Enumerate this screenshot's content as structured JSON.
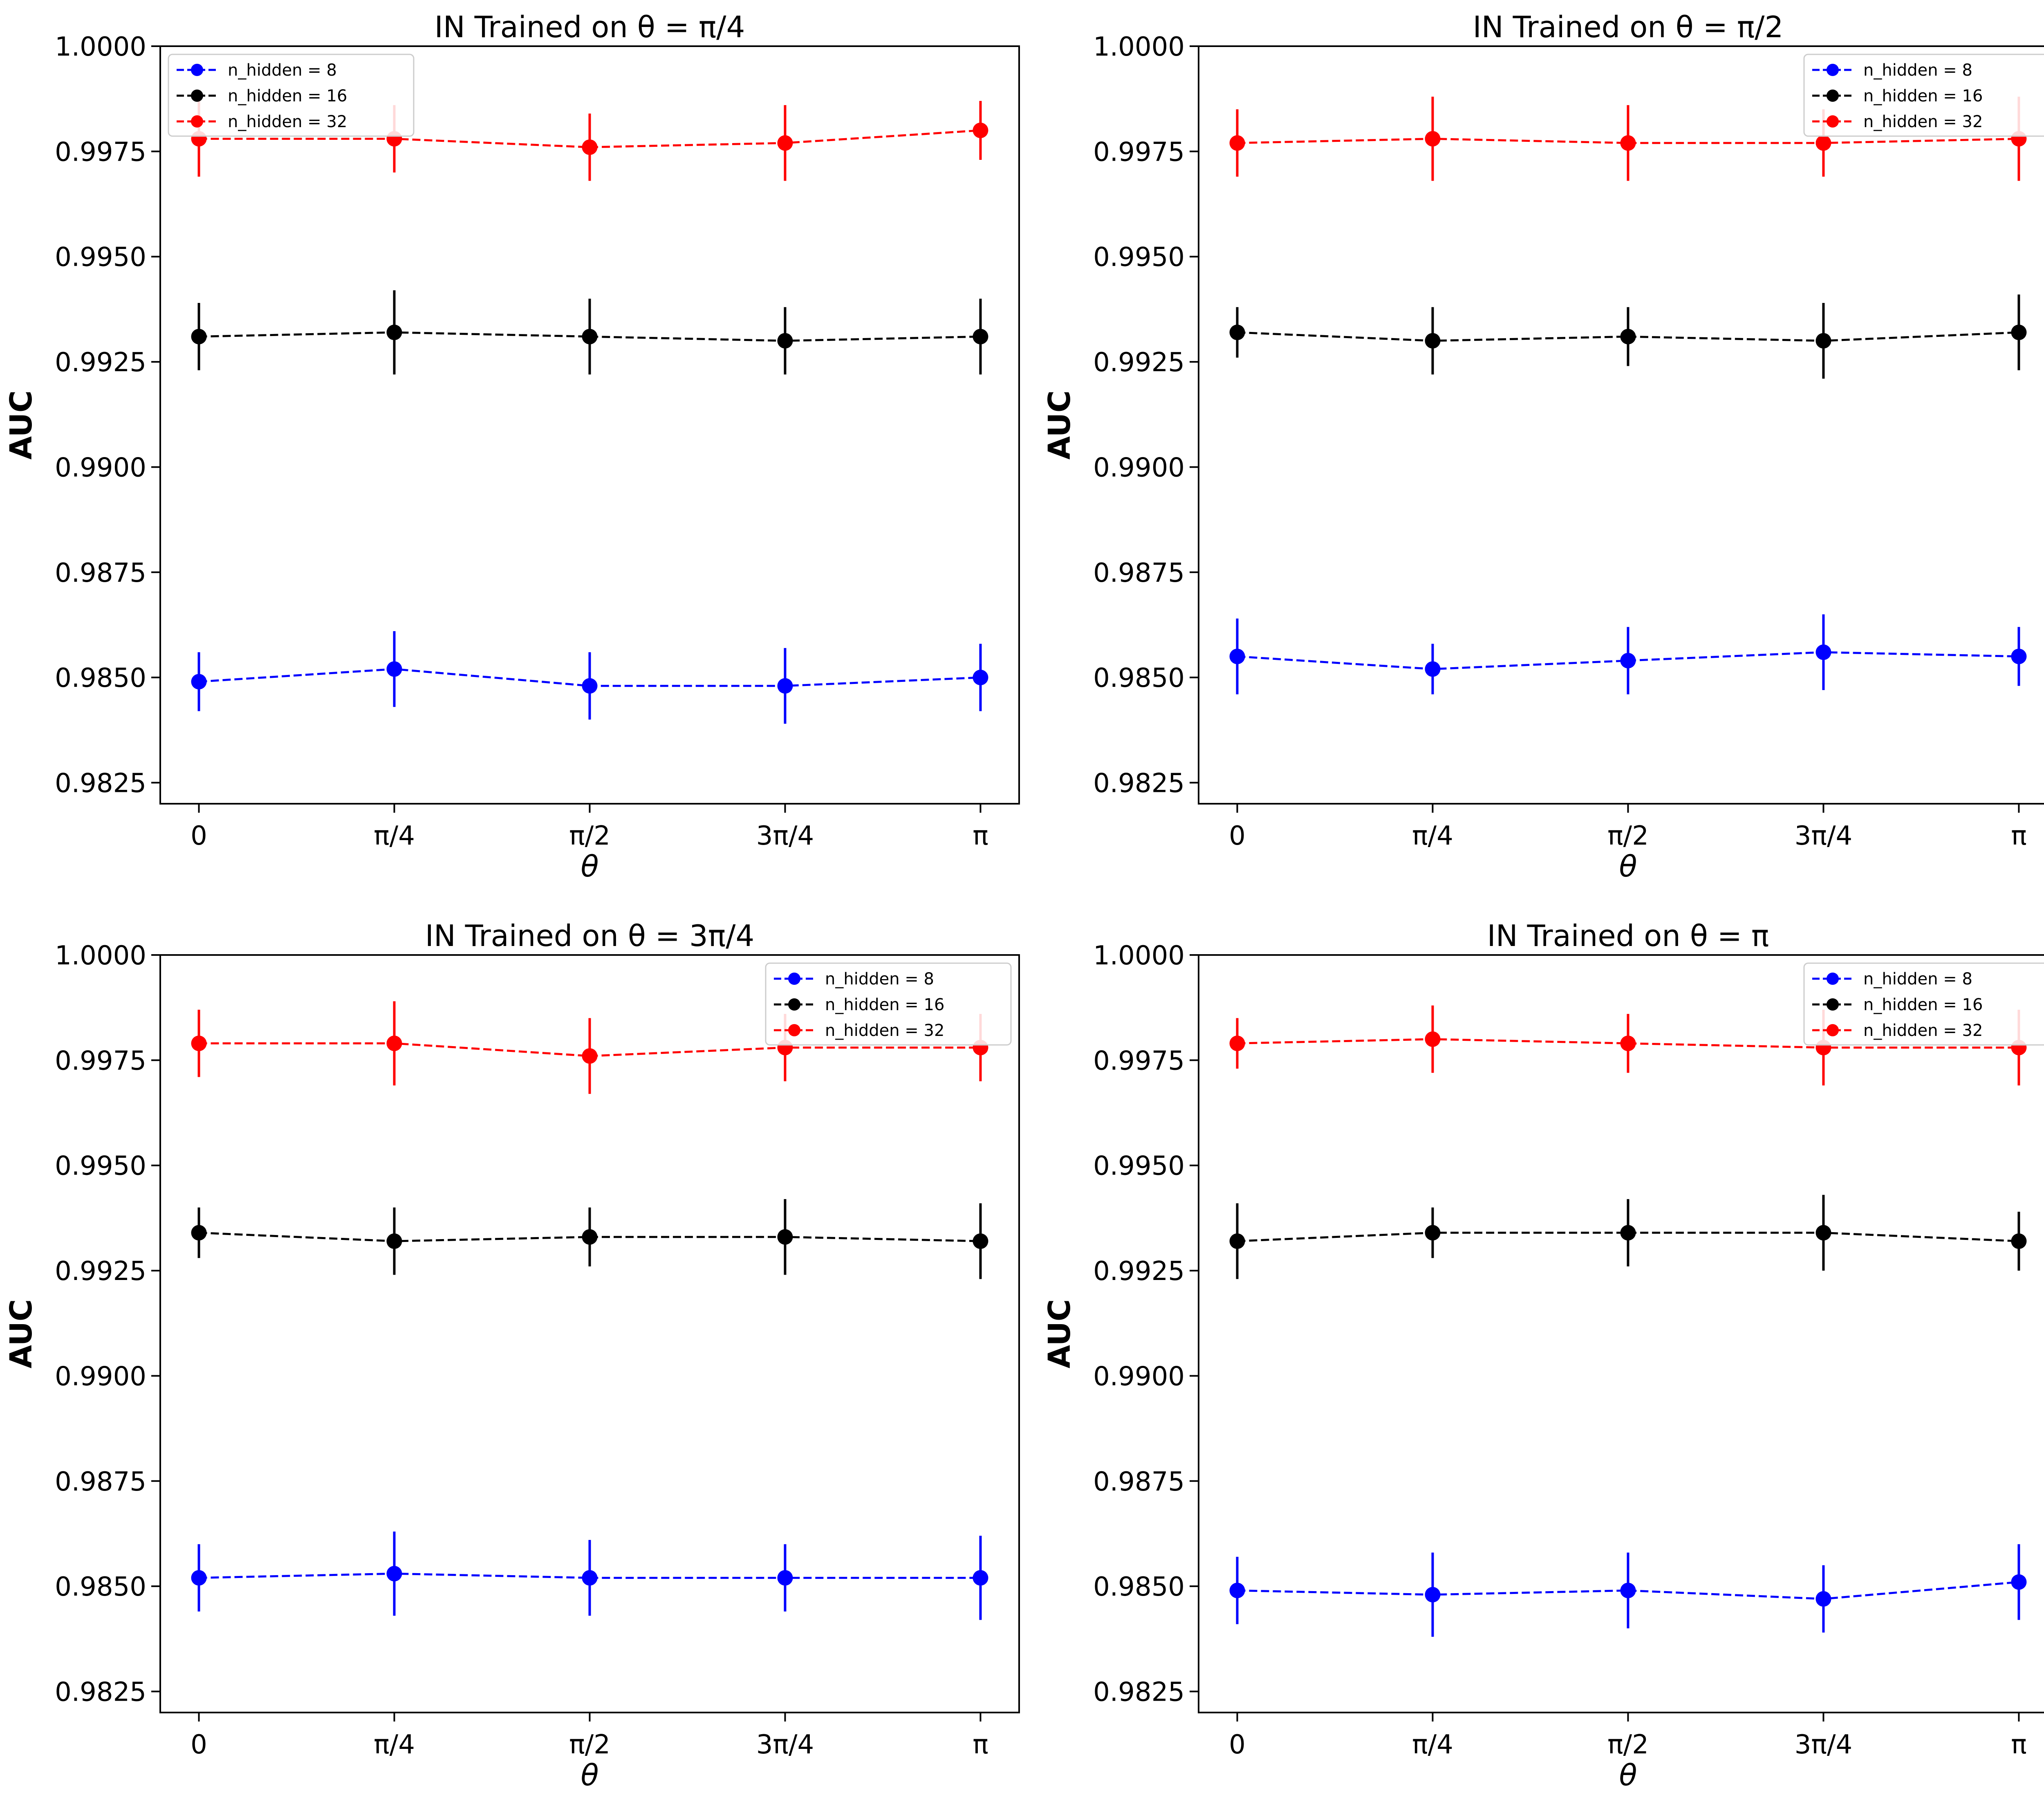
{
  "chart_data": [
    {
      "type": "line",
      "title": "IN Trained on θ = π/4",
      "xlabel": "θ",
      "ylabel": "AUC",
      "categories": [
        "0",
        "π/4",
        "π/2",
        "3π/4",
        "π"
      ],
      "yticks": [
        "1.0000",
        "0.9975",
        "0.9950",
        "0.9925",
        "0.9900",
        "0.9875",
        "0.9850",
        "0.9825"
      ],
      "ylim": [
        0.982,
        1.0
      ],
      "legend": "top-left",
      "series": [
        {
          "name": "n_hidden = 8",
          "color": "#0000ff",
          "values": [
            0.9849,
            0.9852,
            0.9848,
            0.9848,
            0.985
          ],
          "errors": [
            0.0007,
            0.0009,
            0.0008,
            0.0009,
            0.0008
          ]
        },
        {
          "name": "n_hidden = 16",
          "color": "#000000",
          "values": [
            0.9931,
            0.9932,
            0.9931,
            0.993,
            0.9931
          ],
          "errors": [
            0.0008,
            0.001,
            0.0009,
            0.0008,
            0.0009
          ]
        },
        {
          "name": "n_hidden = 32",
          "color": "#ff0000",
          "values": [
            0.9978,
            0.9978,
            0.9976,
            0.9977,
            0.998
          ],
          "errors": [
            0.0009,
            0.0008,
            0.0008,
            0.0009,
            0.0007
          ]
        }
      ]
    },
    {
      "type": "line",
      "title": "IN Trained on θ = π/2",
      "xlabel": "θ",
      "ylabel": "AUC",
      "categories": [
        "0",
        "π/4",
        "π/2",
        "3π/4",
        "π"
      ],
      "yticks": [
        "1.0000",
        "0.9975",
        "0.9950",
        "0.9925",
        "0.9900",
        "0.9875",
        "0.9850",
        "0.9825"
      ],
      "ylim": [
        0.982,
        1.0
      ],
      "legend": "top-right",
      "series": [
        {
          "name": "n_hidden = 8",
          "color": "#0000ff",
          "values": [
            0.9855,
            0.9852,
            0.9854,
            0.9856,
            0.9855
          ],
          "errors": [
            0.0009,
            0.0006,
            0.0008,
            0.0009,
            0.0007
          ]
        },
        {
          "name": "n_hidden = 16",
          "color": "#000000",
          "values": [
            0.9932,
            0.993,
            0.9931,
            0.993,
            0.9932
          ],
          "errors": [
            0.0006,
            0.0008,
            0.0007,
            0.0009,
            0.0009
          ]
        },
        {
          "name": "n_hidden = 32",
          "color": "#ff0000",
          "values": [
            0.9977,
            0.9978,
            0.9977,
            0.9977,
            0.9978
          ],
          "errors": [
            0.0008,
            0.001,
            0.0009,
            0.0008,
            0.001
          ]
        }
      ]
    },
    {
      "type": "line",
      "title": "IN Trained on θ = 3π/4",
      "xlabel": "θ",
      "ylabel": "AUC",
      "categories": [
        "0",
        "π/4",
        "π/2",
        "3π/4",
        "π"
      ],
      "yticks": [
        "1.0000",
        "0.9975",
        "0.9950",
        "0.9925",
        "0.9900",
        "0.9875",
        "0.9850",
        "0.9825"
      ],
      "ylim": [
        0.982,
        1.0
      ],
      "legend": "top-right",
      "series": [
        {
          "name": "n_hidden = 8",
          "color": "#0000ff",
          "values": [
            0.9852,
            0.9853,
            0.9852,
            0.9852,
            0.9852
          ],
          "errors": [
            0.0008,
            0.001,
            0.0009,
            0.0008,
            0.001
          ]
        },
        {
          "name": "n_hidden = 16",
          "color": "#000000",
          "values": [
            0.9934,
            0.9932,
            0.9933,
            0.9933,
            0.9932
          ],
          "errors": [
            0.0006,
            0.0008,
            0.0007,
            0.0009,
            0.0009
          ]
        },
        {
          "name": "n_hidden = 32",
          "color": "#ff0000",
          "values": [
            0.9979,
            0.9979,
            0.9976,
            0.9978,
            0.9978
          ],
          "errors": [
            0.0008,
            0.001,
            0.0009,
            0.0008,
            0.0008
          ]
        }
      ]
    },
    {
      "type": "line",
      "title": "IN Trained on θ = π",
      "xlabel": "θ",
      "ylabel": "AUC",
      "categories": [
        "0",
        "π/4",
        "π/2",
        "3π/4",
        "π"
      ],
      "yticks": [
        "1.0000",
        "0.9975",
        "0.9950",
        "0.9925",
        "0.9900",
        "0.9875",
        "0.9850",
        "0.9825"
      ],
      "ylim": [
        0.982,
        1.0
      ],
      "legend": "top-right",
      "series": [
        {
          "name": "n_hidden = 8",
          "color": "#0000ff",
          "values": [
            0.9849,
            0.9848,
            0.9849,
            0.9847,
            0.9851
          ],
          "errors": [
            0.0008,
            0.001,
            0.0009,
            0.0008,
            0.0009
          ]
        },
        {
          "name": "n_hidden = 16",
          "color": "#000000",
          "values": [
            0.9932,
            0.9934,
            0.9934,
            0.9934,
            0.9932
          ],
          "errors": [
            0.0009,
            0.0006,
            0.0008,
            0.0009,
            0.0007
          ]
        },
        {
          "name": "n_hidden = 32",
          "color": "#ff0000",
          "values": [
            0.9979,
            0.998,
            0.9979,
            0.9978,
            0.9978
          ],
          "errors": [
            0.0006,
            0.0008,
            0.0007,
            0.0009,
            0.0009
          ]
        }
      ]
    }
  ]
}
